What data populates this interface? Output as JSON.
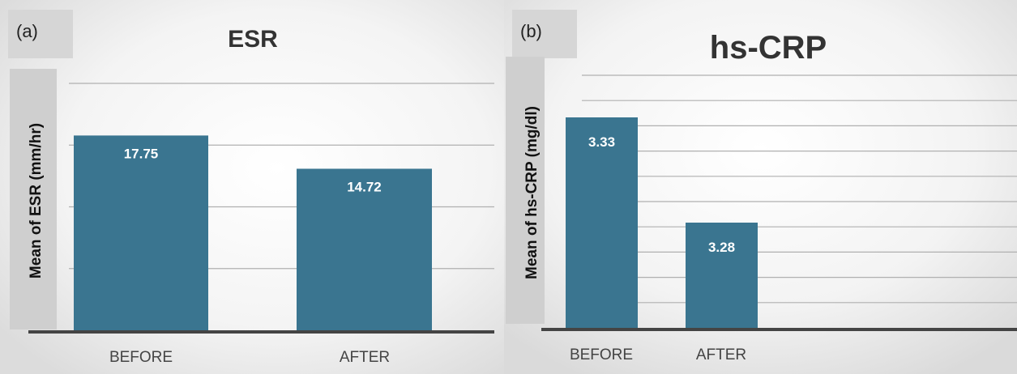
{
  "chart_data": [
    {
      "type": "bar",
      "panel_label": "(a)",
      "title": "ESR",
      "ylabel": "Mean of ESR (mm/hr)",
      "xlabel": "",
      "categories": [
        "BEFORE",
        "AFTER"
      ],
      "values": [
        17.75,
        14.72
      ],
      "value_labels": [
        "17.75",
        "14.72"
      ],
      "ylim": [
        0,
        22.5
      ],
      "grid": true,
      "colors": {
        "bar": "#3a7590",
        "grid": "#b0b0b0",
        "axis": "#444444"
      }
    },
    {
      "type": "bar",
      "panel_label": "(b)",
      "title": "hs-CRP",
      "ylabel": "Mean of hs-CRP (mg/dl)",
      "xlabel": "",
      "categories": [
        "BEFORE",
        "AFTER"
      ],
      "values": [
        3.33,
        3.28
      ],
      "value_labels": [
        "3.33",
        "3.28"
      ],
      "ylim": [
        3.23,
        3.35
      ],
      "grid": true,
      "colors": {
        "bar": "#3a7590",
        "grid": "#b0b0b0",
        "axis": "#444444"
      }
    }
  ]
}
